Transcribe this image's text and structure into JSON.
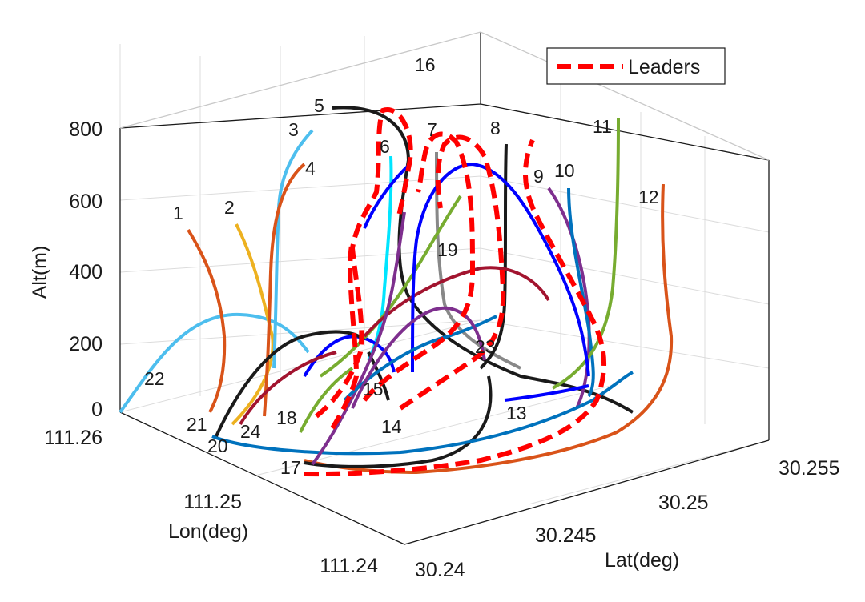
{
  "chart_data": {
    "type": "line",
    "subtype": "3d-trajectories",
    "xlabel": "Lat(deg)",
    "ylabel": "Lon(deg)",
    "zlabel": "Alt(m)",
    "xlim": [
      30.24,
      30.255
    ],
    "ylim": [
      111.24,
      111.26
    ],
    "zlim": [
      0,
      800
    ],
    "xticks": [
      "30.24",
      "30.245",
      "30.25",
      "30.255"
    ],
    "yticks": [
      "111.24",
      "111.25",
      "111.26"
    ],
    "zticks": [
      "0",
      "200",
      "400",
      "600",
      "800"
    ],
    "grid": true,
    "legend": {
      "position": "top-right",
      "entries": [
        {
          "name": "Leaders",
          "color": "#ff0000",
          "style": "dashed"
        }
      ]
    },
    "trajectory_labels": [
      "1",
      "2",
      "3",
      "4",
      "5",
      "6",
      "7",
      "8",
      "9",
      "10",
      "11",
      "12",
      "13",
      "14",
      "15",
      "16",
      "17",
      "18",
      "19",
      "20",
      "21",
      "22",
      "23",
      "24"
    ],
    "colors": {
      "orange": "#d95319",
      "yellow": "#edb120",
      "lightblue": "#4dbeee",
      "black": "#1a1a1a",
      "cyan": "#00e5ff",
      "gray": "#888888",
      "blue": "#0000ff",
      "purple": "#7e2f8e",
      "steelblue": "#0072bd",
      "green": "#77ac30",
      "maroon": "#a2142f",
      "red": "#ff0000"
    }
  }
}
